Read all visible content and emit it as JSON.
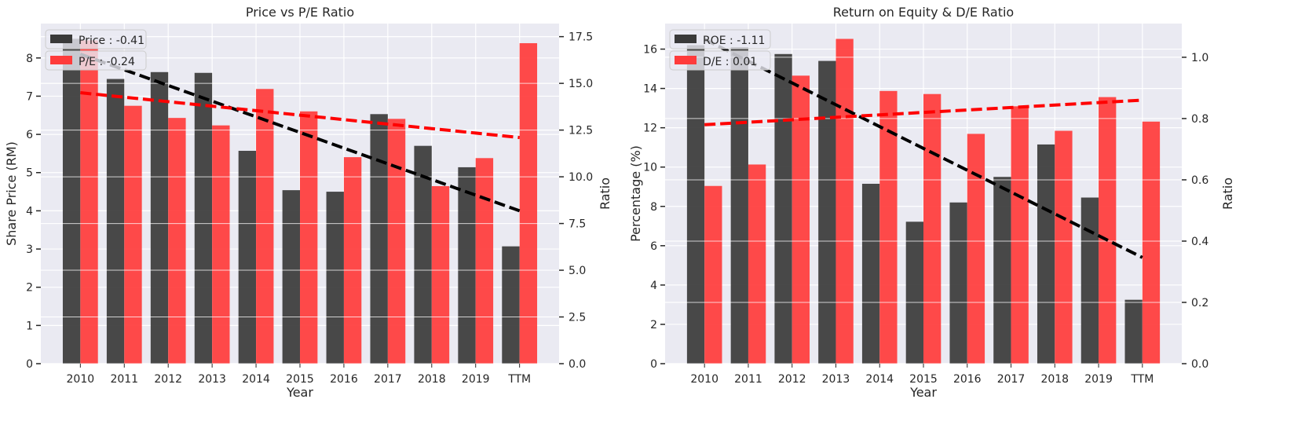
{
  "colors": {
    "background": "#eaeaf2",
    "grid": "#ffffff",
    "series_dark": "#3a3a3a",
    "series_red": "#ff3b3b",
    "trend_dark": "#000000",
    "trend_red": "#ff0000"
  },
  "chart_data": [
    {
      "type": "bar",
      "title": "Price vs P/E Ratio",
      "xlabel": "Year",
      "ylabel_left": "Share Price (RM)",
      "ylabel_right": "Ratio",
      "categories": [
        "2010",
        "2011",
        "2012",
        "2013",
        "2014",
        "2015",
        "2016",
        "2017",
        "2018",
        "2019",
        "TTM"
      ],
      "ylim_left": [
        0,
        8.9
      ],
      "yticks_left": [
        "0",
        "1",
        "2",
        "3",
        "4",
        "5",
        "6",
        "7",
        "8"
      ],
      "ylim_right": [
        0,
        18.2
      ],
      "yticks_right": [
        "0.0",
        "2.5",
        "5.0",
        "7.5",
        "10.0",
        "12.5",
        "15.0",
        "17.5"
      ],
      "grid": true,
      "legend_position": "top-left",
      "series": [
        {
          "name": "Price : -0.41",
          "axis": "left",
          "color": "#3a3a3a",
          "values": [
            8.5,
            7.45,
            7.63,
            7.61,
            5.57,
            4.54,
            4.5,
            6.53,
            5.7,
            5.14,
            3.07
          ],
          "trend": [
            8.1,
            7.69,
            7.28,
            6.87,
            6.46,
            6.05,
            5.64,
            5.23,
            4.82,
            4.41,
            4.0
          ]
        },
        {
          "name": "P/E : -0.24",
          "axis": "right",
          "color": "#ff3b3b",
          "values": [
            17.3,
            13.8,
            13.15,
            12.75,
            14.7,
            13.5,
            11.05,
            13.1,
            9.5,
            11.0,
            17.15
          ],
          "trend": [
            14.5,
            14.26,
            14.02,
            13.78,
            13.54,
            13.3,
            13.06,
            12.82,
            12.58,
            12.34,
            12.1
          ]
        }
      ]
    },
    {
      "type": "bar",
      "title": "Return on Equity & D/E Ratio",
      "xlabel": "Year",
      "ylabel_left": "Percentage (%)",
      "ylabel_right": "Ratio",
      "categories": [
        "2010",
        "2011",
        "2012",
        "2013",
        "2014",
        "2015",
        "2016",
        "2017",
        "2018",
        "2019",
        "TTM"
      ],
      "ylim_left": [
        0,
        17.3
      ],
      "yticks_left": [
        "0",
        "2",
        "4",
        "6",
        "8",
        "10",
        "12",
        "14",
        "16"
      ],
      "ylim_right": [
        0,
        1.11
      ],
      "yticks_right": [
        "0.0",
        "0.2",
        "0.4",
        "0.6",
        "0.8",
        "1.0"
      ],
      "grid": true,
      "legend_position": "top-left",
      "series": [
        {
          "name": "ROE : -1.11",
          "axis": "left",
          "color": "#3a3a3a",
          "values": [
            16.2,
            16.1,
            15.75,
            15.4,
            9.15,
            7.22,
            8.2,
            9.5,
            11.15,
            8.45,
            3.25
          ],
          "trend": [
            16.5,
            15.39,
            14.28,
            13.17,
            12.06,
            10.95,
            9.84,
            8.73,
            7.62,
            6.51,
            5.4
          ]
        },
        {
          "name": "D/E : 0.01",
          "axis": "right",
          "color": "#ff3b3b",
          "values": [
            0.58,
            0.65,
            0.94,
            1.06,
            0.89,
            0.88,
            0.75,
            0.84,
            0.76,
            0.87,
            0.79
          ],
          "trend": [
            0.78,
            0.788,
            0.796,
            0.804,
            0.812,
            0.82,
            0.828,
            0.836,
            0.844,
            0.852,
            0.86
          ]
        }
      ]
    }
  ]
}
